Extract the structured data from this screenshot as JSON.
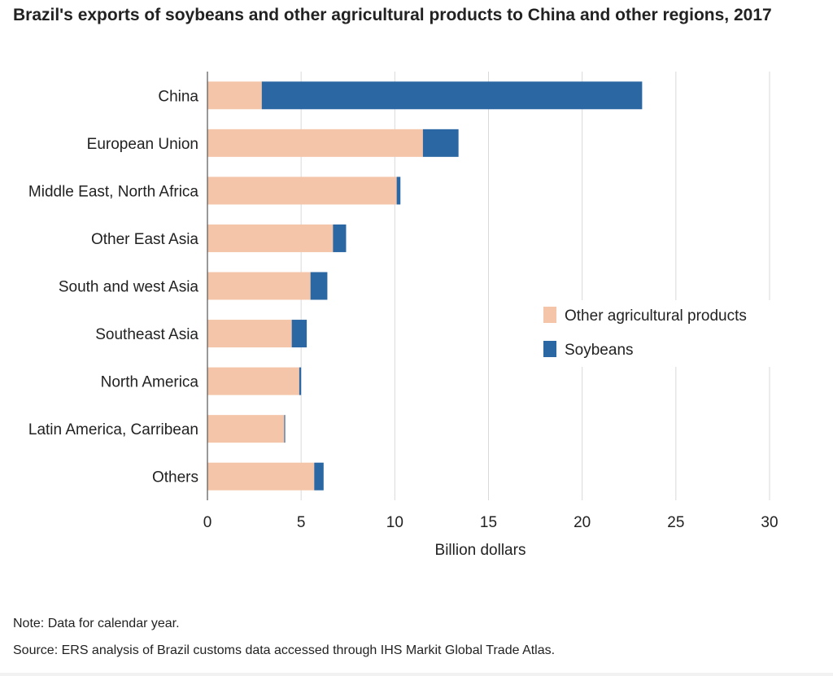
{
  "chart_data": {
    "type": "bar",
    "orientation": "horizontal",
    "stacked": true,
    "title": "Brazil's exports of soybeans and other agricultural products to China and other regions, 2017",
    "xlabel": "Billion dollars",
    "ylabel": "",
    "xlim": [
      0,
      30
    ],
    "xticks": [
      0,
      5,
      10,
      15,
      20,
      25,
      30
    ],
    "grid": "vertical",
    "legend_position": "right",
    "categories": [
      "China",
      "European Union",
      "Middle East, North Africa",
      "Other East Asia",
      "South and west Asia",
      "Southeast Asia",
      "North America",
      "Latin America, Carribean",
      "Others"
    ],
    "series": [
      {
        "name": "Other agricultural products",
        "color": "#f4c5a8",
        "values": [
          2.9,
          11.5,
          10.1,
          6.7,
          5.5,
          4.5,
          4.9,
          4.1,
          5.7
        ]
      },
      {
        "name": "Soybeans",
        "color": "#2b67a3",
        "values": [
          20.3,
          1.9,
          0.2,
          0.7,
          0.9,
          0.8,
          0.1,
          0.05,
          0.5
        ]
      }
    ]
  },
  "footer": {
    "note": "Note: Data for calendar year.",
    "source": "Source: ERS analysis of Brazil customs data accessed through IHS Markit Global Trade Atlas."
  }
}
